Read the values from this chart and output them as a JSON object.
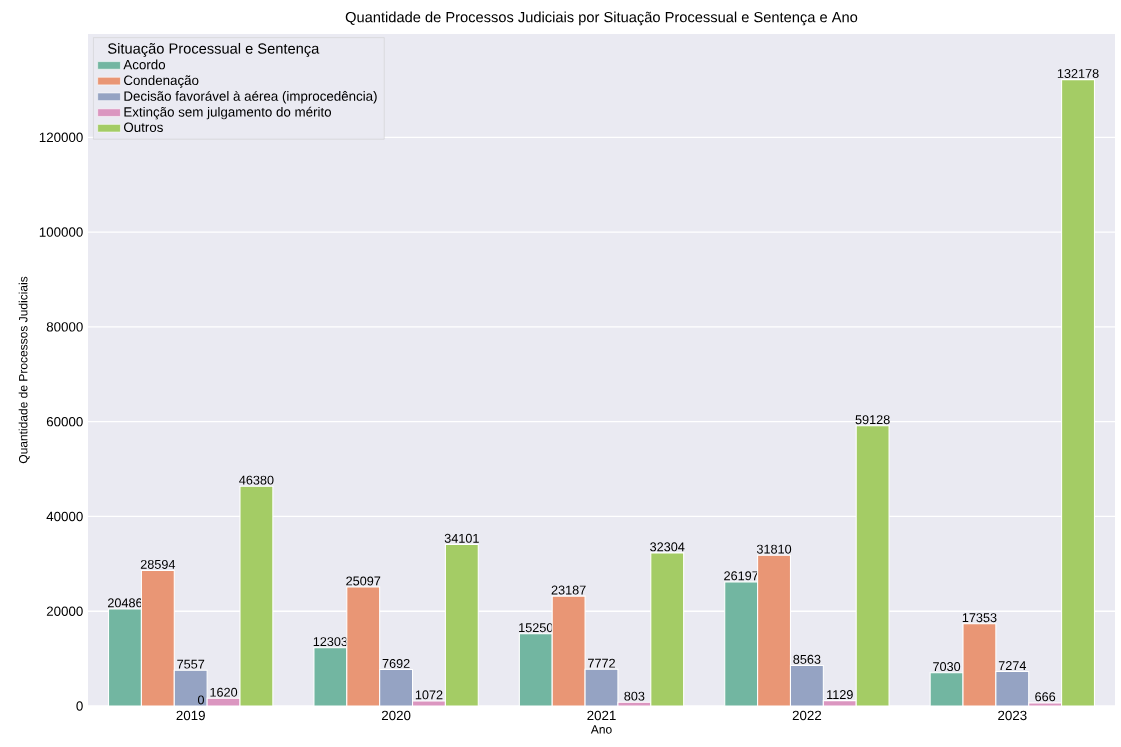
{
  "chart_data": {
    "type": "bar",
    "title": "Quantidade de Processos Judiciais por Situação Processual e Sentença e Ano",
    "xlabel": "Ano",
    "ylabel": "Quantidade de Processos Judiciais",
    "legend_title": "Situação Processual e Sentença",
    "categories": [
      "2019",
      "2020",
      "2021",
      "2022",
      "2023"
    ],
    "series": [
      {
        "name": "Acordo",
        "color": "#72b6a1",
        "values": [
          20486,
          12303,
          15250,
          26197,
          7030
        ]
      },
      {
        "name": "Condenação",
        "color": "#e99675",
        "values": [
          28594,
          25097,
          23187,
          31810,
          17353
        ]
      },
      {
        "name": "Decisão favorável à aérea (improcedência)",
        "color": "#95a3c3",
        "values": [
          7557,
          7692,
          7772,
          8563,
          7274
        ]
      },
      {
        "name": "Extinção sem julgamento do mérito",
        "color": "#db96c0",
        "values": [
          1620,
          1072,
          803,
          1129,
          666
        ]
      },
      {
        "name": "Outros",
        "color": "#a4cc65",
        "values": [
          46380,
          34101,
          32304,
          59128,
          132178
        ]
      }
    ],
    "ylim": [
      0,
      141800
    ],
    "yticks": [
      0,
      20000,
      40000,
      60000,
      80000,
      100000,
      120000
    ],
    "grid": "y",
    "legend": "top left",
    "data_labels": true,
    "annotations": [
      {
        "text": "0",
        "x": "2019",
        "y": 0
      }
    ]
  }
}
